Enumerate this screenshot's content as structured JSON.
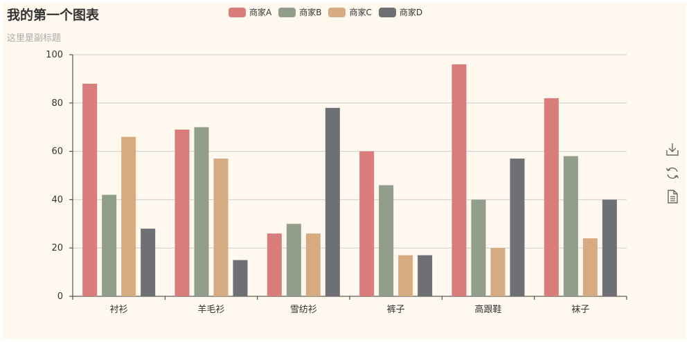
{
  "title": "我的第一个图表",
  "subtitle": "这里是副标题",
  "legend": [
    {
      "name": "商家A",
      "color": "#d87c7c"
    },
    {
      "name": "商家B",
      "color": "#919e8b"
    },
    {
      "name": "商家C",
      "color": "#d7ab82"
    },
    {
      "name": "商家D",
      "color": "#6e7074"
    }
  ],
  "toolbox": [
    "download-icon",
    "refresh-icon",
    "data-view-icon"
  ],
  "chart_data": {
    "type": "bar",
    "categories": [
      "衬衫",
      "羊毛衫",
      "雪纺衫",
      "裤子",
      "高跟鞋",
      "袜子"
    ],
    "series": [
      {
        "name": "商家A",
        "values": [
          88,
          69,
          26,
          60,
          96,
          82
        ],
        "color": "#d87c7c"
      },
      {
        "name": "商家B",
        "values": [
          42,
          70,
          30,
          46,
          40,
          58
        ],
        "color": "#919e8b"
      },
      {
        "name": "商家C",
        "values": [
          66,
          57,
          26,
          17,
          20,
          24
        ],
        "color": "#d7ab82"
      },
      {
        "name": "商家D",
        "values": [
          28,
          15,
          78,
          17,
          57,
          40
        ],
        "color": "#6e7074"
      }
    ],
    "ylim": [
      0,
      100
    ],
    "yticks": [
      0,
      20,
      40,
      60,
      80,
      100
    ],
    "grid": true,
    "legend_position": "top-center"
  }
}
